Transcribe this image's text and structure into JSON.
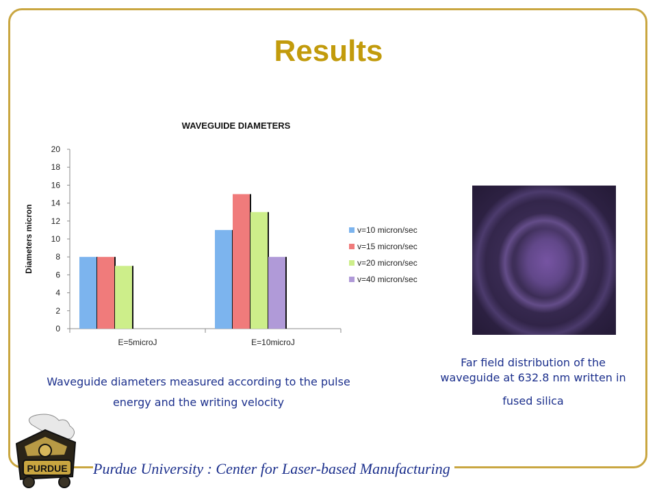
{
  "slide": {
    "title": "Results",
    "caption_left_line1": "Waveguide diameters measured according to the pulse",
    "caption_left_line2": "energy and the writing velocity",
    "caption_right_line1": "Far field distribution of the",
    "caption_right_line2": "waveguide at  632.8 nm written in",
    "caption_right_line3": "fused silica",
    "footer": "Purdue University :  Center for Laser-based Manufacturing",
    "logo_text": "PURDUE",
    "accent_color": "#c29b0c",
    "text_color": "#1b2f8c",
    "border_color": "#c9a640"
  },
  "chart_data": {
    "type": "bar",
    "title": "WAVEGUIDE DIAMETERS",
    "xlabel": "",
    "ylabel": "Diameters  micron",
    "ylim": [
      0,
      20
    ],
    "yticks": [
      0,
      2,
      4,
      6,
      8,
      10,
      12,
      14,
      16,
      18,
      20
    ],
    "categories": [
      "E=5microJ",
      "E=10microJ"
    ],
    "legend_position": "right",
    "grid": false,
    "series": [
      {
        "name": "v=10 micron/sec",
        "color": "#7cb4ee",
        "values": [
          8,
          11
        ]
      },
      {
        "name": "v=15 micron/sec",
        "color": "#f07b7b",
        "values": [
          8,
          15
        ]
      },
      {
        "name": "v=20 micron/sec",
        "color": "#cdee8a",
        "values": [
          7,
          13
        ]
      },
      {
        "name": "v=40 micron/sec",
        "color": "#b09ad8",
        "values": [
          null,
          8
        ]
      }
    ]
  }
}
